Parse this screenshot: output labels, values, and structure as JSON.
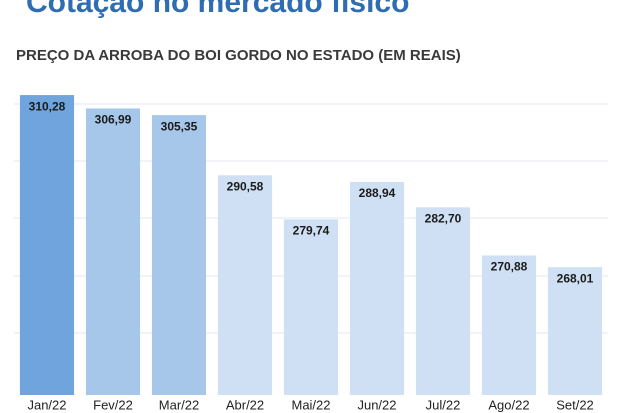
{
  "chart_data": {
    "type": "bar",
    "title": "Cotação no mercado físico",
    "subtitle": "PREÇO DA ARROBA DO BOI GORDO NO ESTADO (EM REAIS)",
    "categories": [
      "Jan/22",
      "Fev/22",
      "Mar/22",
      "Abr/22",
      "Mai/22",
      "Jun/22",
      "Jul/22",
      "Ago/22",
      "Set/22"
    ],
    "values": [
      310.28,
      306.99,
      305.35,
      290.58,
      279.74,
      288.94,
      282.7,
      270.88,
      268.01
    ],
    "value_labels": [
      "310,28",
      "306,99",
      "305,35",
      "290,58",
      "279,74",
      "288,94",
      "282,70",
      "270,88",
      "268,01"
    ],
    "colors": [
      "#6fa5dc",
      "#a6c6ea",
      "#a6c6ea",
      "#cfe0f4",
      "#cfe0f4",
      "#cfe0f4",
      "#cfe0f4",
      "#cfe0f4",
      "#cfe0f4"
    ],
    "ylim": [
      236.6,
      318.9
    ]
  }
}
